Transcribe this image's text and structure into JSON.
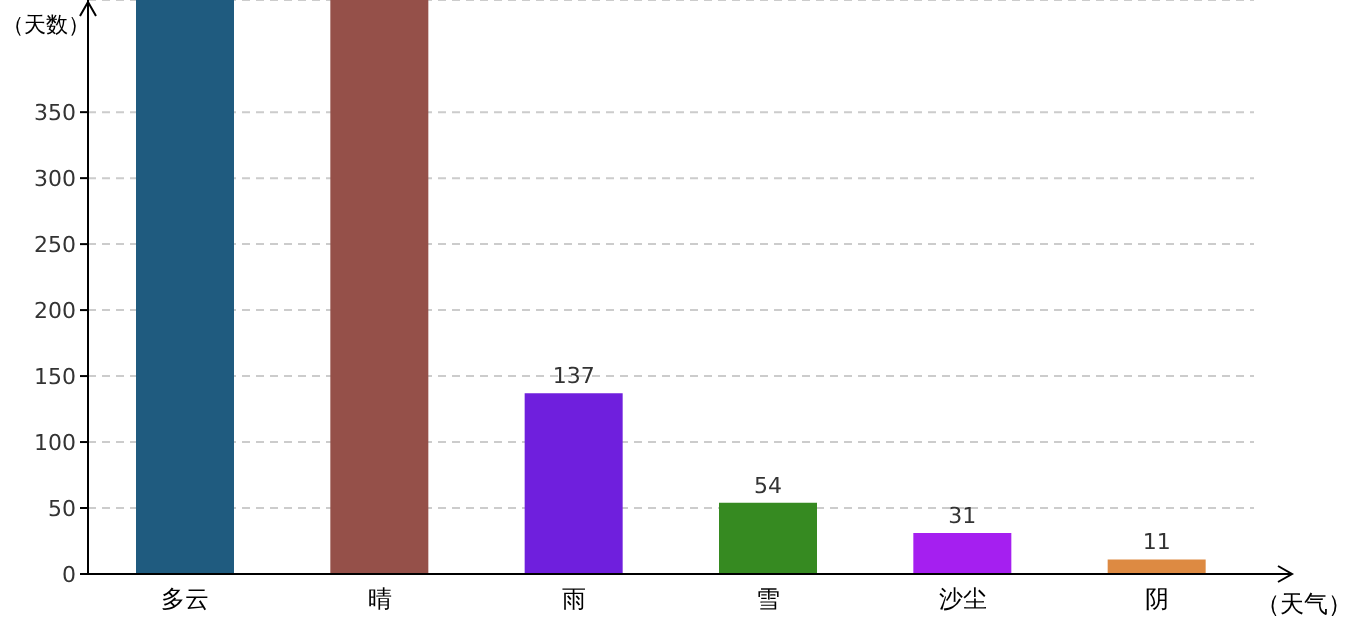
{
  "chart_data": {
    "type": "bar",
    "xlabel": "（天气）",
    "ylabel": "（天数）",
    "categories": [
      "多云",
      "晴",
      "雨",
      "雪",
      "沙尘",
      "阴"
    ],
    "values": [
      435,
      435,
      137,
      54,
      31,
      11
    ],
    "value_labels": [
      null,
      null,
      "137",
      "54",
      "31",
      "11"
    ],
    "colors": [
      "#1f5b7f",
      "#955049",
      "#6f1fdd",
      "#368a21",
      "#a51ff0",
      "#dd8a42"
    ],
    "ylim": [
      0,
      435
    ],
    "yticks": [
      0,
      50,
      100,
      150,
      200,
      250,
      300,
      350
    ],
    "grid": "y"
  }
}
